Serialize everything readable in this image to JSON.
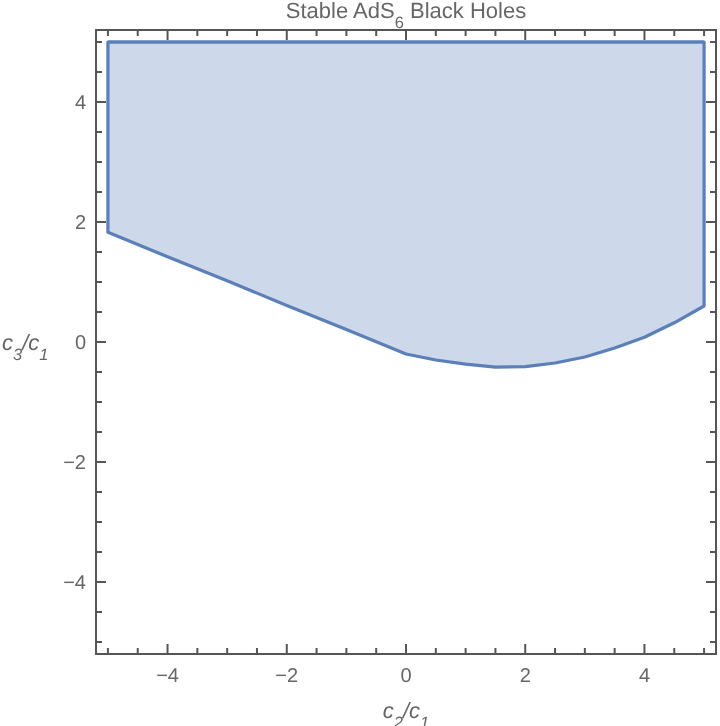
{
  "chart_data": {
    "type": "line",
    "title": "Stable AdS$_{6}$ Black Holes",
    "xlabel": "c$_{2}$/c$_{1}$",
    "ylabel": "c$_{3}$/c$_{1}$",
    "xlim": [
      -5.2,
      5.2
    ],
    "ylim": [
      -5.2,
      5.2
    ],
    "xticks": [
      {
        "value": -5,
        "label": null
      },
      {
        "value": -4.5,
        "label": null
      },
      -4,
      {
        "value": -3.5,
        "label": null
      },
      {
        "value": -3,
        "label": null
      },
      {
        "value": -2.5,
        "label": null
      },
      -2,
      {
        "value": -1.5,
        "label": null
      },
      {
        "value": -1,
        "label": null
      },
      {
        "value": -0.5,
        "label": null
      },
      0,
      {
        "value": 0.5,
        "label": null
      },
      {
        "value": 1,
        "label": null
      },
      {
        "value": 1.5,
        "label": null
      },
      2,
      {
        "value": 2.5,
        "label": null
      },
      {
        "value": 3,
        "label": null
      },
      {
        "value": 3.5,
        "label": null
      },
      4,
      {
        "value": 4.5,
        "label": null
      },
      {
        "value": 5,
        "label": null
      }
    ],
    "yticks": [
      {
        "value": -5,
        "label": null
      },
      {
        "value": -4.5,
        "label": null
      },
      -4,
      {
        "value": -3.5,
        "label": null
      },
      {
        "value": -3,
        "label": null
      },
      {
        "value": -2.5,
        "label": null
      },
      -2,
      {
        "value": -1.5,
        "label": null
      },
      {
        "value": -1,
        "label": null
      },
      {
        "value": -0.5,
        "label": null
      },
      0,
      {
        "value": 0.5,
        "label": null
      },
      {
        "value": 1,
        "label": null
      },
      {
        "value": 1.5,
        "label": null
      },
      2,
      {
        "value": 2.5,
        "label": null
      },
      {
        "value": 3,
        "label": null
      },
      {
        "value": 3.5,
        "label": null
      },
      4,
      {
        "value": 4.5,
        "label": null
      },
      {
        "value": 5,
        "label": null
      }
    ],
    "grid": false,
    "series": [
      {
        "color": "#5b7fb8",
        "x": [
          -5,
          -4,
          -3,
          -2,
          -1,
          0,
          0.5,
          1,
          1.5,
          2,
          2.5,
          3,
          3.5,
          4,
          4.5,
          5
        ],
        "values": [
          5,
          5,
          5,
          5,
          5,
          5,
          5,
          5,
          5,
          5,
          5,
          5,
          5,
          5,
          5,
          5
        ],
        "upper": [
          5,
          5,
          5,
          5,
          5,
          5,
          5,
          5,
          5,
          5,
          5,
          5,
          5,
          5,
          5,
          5
        ],
        "lower": [
          1.83,
          1.42,
          1.02,
          0.61,
          0.21,
          -0.2,
          -0.3,
          -0.37,
          -0.42,
          -0.41,
          -0.35,
          -0.25,
          -0.1,
          0.08,
          0.32,
          0.6
        ]
      }
    ]
  }
}
